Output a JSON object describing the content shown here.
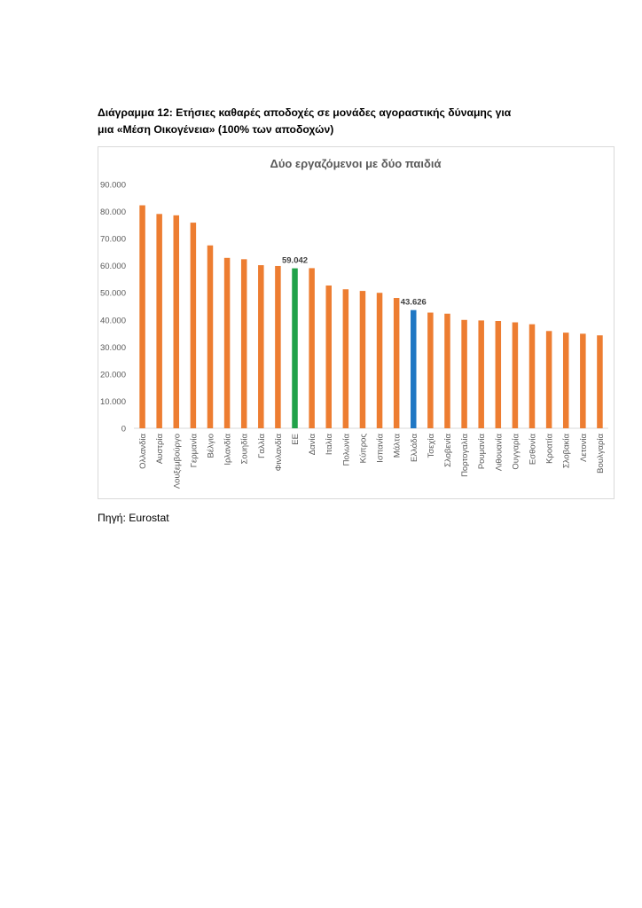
{
  "document": {
    "heading_line1": "Διάγραμμα 12: Ετήσιες καθαρές αποδοχές σε μονάδες αγοραστικής δύναμης για",
    "heading_line2": "μια «Μέση Οικογένεια» (100% των αποδοχών)",
    "source": "Πηγή: Eurostat"
  },
  "chart_data": {
    "type": "bar",
    "title": "Δύο εργαζόμενοι με δύο παιδιά",
    "xlabel": "",
    "ylabel": "",
    "ylim": [
      0,
      90000
    ],
    "yticks": [
      0,
      10000,
      20000,
      30000,
      40000,
      50000,
      60000,
      70000,
      80000,
      90000
    ],
    "ytick_labels": [
      "0",
      "10.000",
      "20.000",
      "30.000",
      "40.000",
      "50.000",
      "60.000",
      "70.000",
      "80.000",
      "90.000"
    ],
    "grid": false,
    "legend": "none",
    "categories": [
      "Ολλανδία",
      "Αυστρία",
      "Λουξεμβούργο",
      "Γερμανία",
      "Βέλγιο",
      "Ιρλανδία",
      "Σουηδία",
      "Γαλλία",
      "Φινλανδία",
      "ΕΕ",
      "Δανία",
      "Ιταλία",
      "Πολωνία",
      "Κύπρος",
      "Ισπανία",
      "Μάλτα",
      "Ελλάδα",
      "Τσεχία",
      "Σλοβενία",
      "Πορτογαλία",
      "Ρουμανία",
      "Λιθουανία",
      "Ουγγαρία",
      "Εσθονία",
      "Κροατία",
      "Σλοβακία",
      "Λετονία",
      "Βουλγαρία"
    ],
    "values": [
      82300,
      79100,
      78600,
      75900,
      67500,
      62900,
      62400,
      60200,
      59900,
      59042,
      59100,
      52700,
      51300,
      50700,
      50000,
      48100,
      43626,
      42700,
      42300,
      40000,
      39800,
      39600,
      39100,
      38400,
      35900,
      35300,
      34900,
      34300
    ],
    "data_labels": [
      {
        "category": "ΕΕ",
        "text": "59.042"
      },
      {
        "category": "Ελλάδα",
        "text": "43.626"
      }
    ],
    "colors": {
      "default": "#ED7D31",
      "highlight_eu": "#21A249",
      "highlight_greece": "#1F77C4",
      "axis_text": "#595959",
      "title_text": "#595959",
      "axis_line": "#d9d9d9"
    },
    "highlights": {
      "ΕΕ": "highlight_eu",
      "Ελλάδα": "highlight_greece"
    }
  }
}
